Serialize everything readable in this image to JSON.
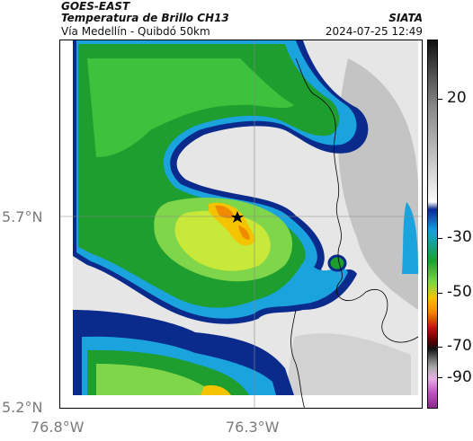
{
  "header": {
    "satellite": "GOES-EAST",
    "product": "Temperatura de Brillo CH13",
    "region": "Vía Medellín - Quibdó 50km",
    "org": "SIATA",
    "datetime": "2024-07-25 12:49"
  },
  "axes": {
    "lat_labels": [
      "5.7°N",
      "5.2°N"
    ],
    "lon_labels": [
      "76.8°W",
      "76.3°W"
    ]
  },
  "colorbar": {
    "labels": [
      "20",
      "-30",
      "-50",
      "-70",
      "-90"
    ]
  },
  "map": {
    "marker": "star-icon",
    "colors": {
      "cold_cloud": "#1e9e2e",
      "deep_cloud": "#f5c400",
      "edge": "#0a2a8c",
      "clear": "#e8e8e8"
    }
  }
}
